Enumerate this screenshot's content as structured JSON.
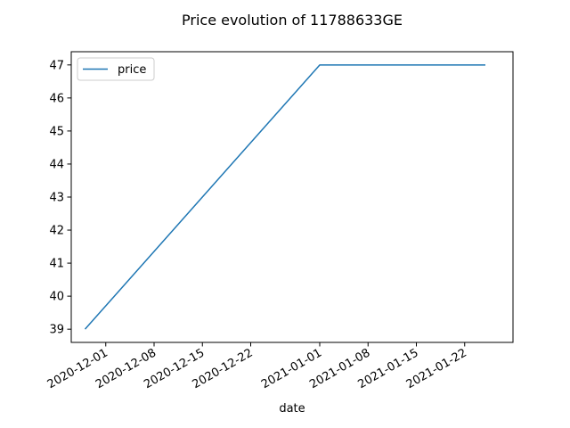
{
  "chart_data": {
    "type": "line",
    "title": "Price evolution of 11788633GE",
    "xlabel": "date",
    "ylabel": "",
    "x_type": "date",
    "xlim": [
      "2020-11-26",
      "2021-01-29"
    ],
    "ylim": [
      38.6,
      47.4
    ],
    "x_ticks": [
      "2020-12-01",
      "2020-12-08",
      "2020-12-15",
      "2020-12-22",
      "2021-01-01",
      "2021-01-08",
      "2021-01-15",
      "2021-01-22"
    ],
    "y_ticks": [
      39,
      40,
      41,
      42,
      43,
      44,
      45,
      46,
      47
    ],
    "grid": false,
    "legend": {
      "position": "top-left",
      "entries": [
        "price"
      ]
    },
    "series": [
      {
        "name": "price",
        "color": "#1f77b4",
        "points": [
          {
            "x": "2020-11-28",
            "y": 39
          },
          {
            "x": "2021-01-01",
            "y": 47
          },
          {
            "x": "2021-01-25",
            "y": 47
          }
        ]
      }
    ]
  }
}
